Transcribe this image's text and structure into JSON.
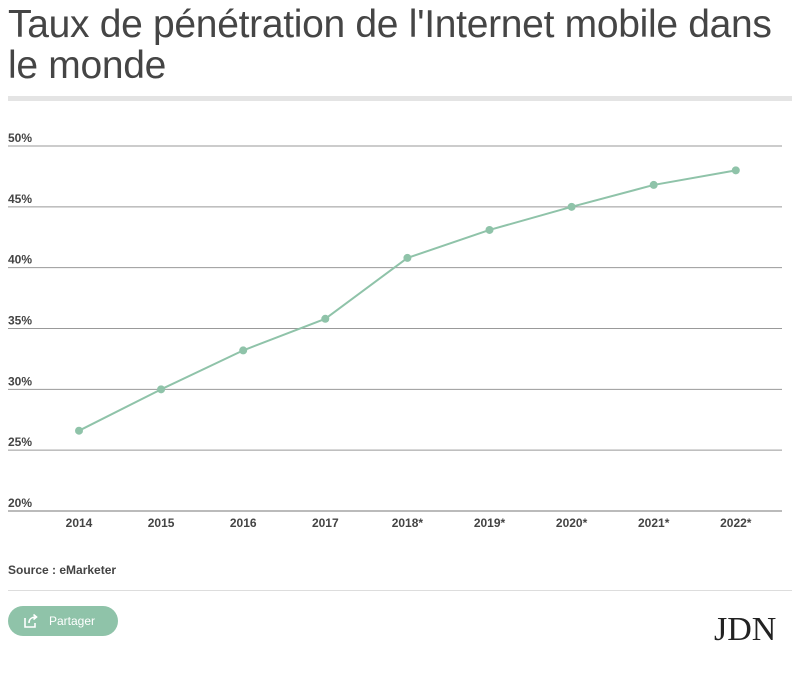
{
  "chart_data": {
    "type": "line",
    "title": "Taux de pénétration de l'Internet mobile dans le monde",
    "categories": [
      "2014",
      "2015",
      "2016",
      "2017",
      "2018*",
      "2019*",
      "2020*",
      "2021*",
      "2022*"
    ],
    "series": [
      {
        "values": [
          26.6,
          30.0,
          33.2,
          35.8,
          40.8,
          43.1,
          45.0,
          46.8,
          48.0
        ]
      }
    ],
    "yticks": [
      "20%",
      "25%",
      "30%",
      "35%",
      "40%",
      "45%",
      "50%"
    ],
    "ylim": [
      20,
      50
    ],
    "grid": true,
    "line_color": "#8fc3a9"
  },
  "source": "Source : eMarketer",
  "share_button": {
    "label": "Partager",
    "icon": "share-icon"
  },
  "logo": "JDN"
}
